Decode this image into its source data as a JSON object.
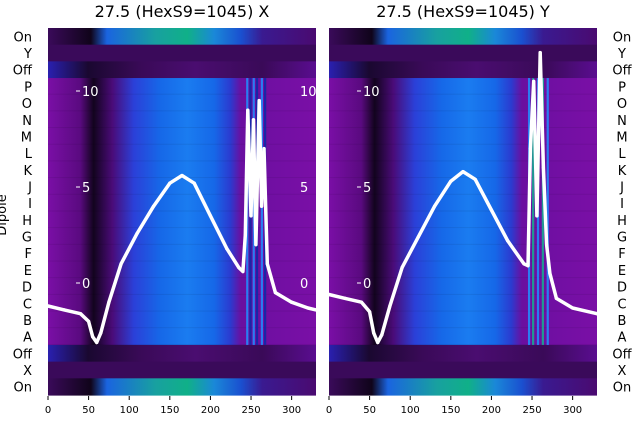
{
  "chart_data": [
    {
      "type": "heatmap",
      "title": "27.5 (HexS9=1045) X",
      "ylabel": "Dipole",
      "xlim": [
        0,
        330
      ],
      "x_ticks": [
        "0",
        "50",
        "100",
        "150",
        "200",
        "250",
        "300"
      ],
      "line_ticks": [
        "0",
        "5",
        "10",
        "15",
        "20",
        "25"
      ],
      "rows": [
        "On",
        "Y",
        "Off",
        "P",
        "O",
        "N",
        "M",
        "L",
        "K",
        "J",
        "I",
        "H",
        "G",
        "F",
        "E",
        "D",
        "C",
        "B",
        "A",
        "Off",
        "X",
        "On"
      ],
      "trace": {
        "x": [
          0,
          20,
          40,
          50,
          55,
          60,
          65,
          75,
          90,
          110,
          130,
          150,
          165,
          180,
          200,
          220,
          235,
          240,
          243,
          246,
          250,
          253,
          256,
          260,
          263,
          266,
          270,
          280,
          300,
          320,
          330
        ],
        "y": [
          -1.2,
          -1.4,
          -1.6,
          -2.0,
          -2.8,
          -3.1,
          -2.6,
          -1.0,
          1.0,
          2.6,
          4.0,
          5.2,
          5.6,
          5.2,
          3.5,
          1.8,
          0.8,
          0.6,
          2.5,
          9.0,
          3.5,
          8.5,
          2.0,
          9.5,
          4.0,
          7.0,
          1.0,
          -0.5,
          -1.0,
          -1.3,
          -1.4
        ]
      }
    },
    {
      "type": "heatmap",
      "title": "27.5 (HexS9=1045) Y",
      "xlim": [
        0,
        330
      ],
      "x_ticks": [
        "0",
        "50",
        "100",
        "150",
        "200",
        "250",
        "300"
      ],
      "line_ticks": [
        "0",
        "5",
        "10",
        "15",
        "20",
        "25"
      ],
      "rows": [
        "On",
        "Y",
        "Off",
        "P",
        "O",
        "N",
        "M",
        "L",
        "K",
        "J",
        "I",
        "H",
        "G",
        "F",
        "E",
        "D",
        "C",
        "B",
        "A",
        "Off",
        "X",
        "On"
      ],
      "trace": {
        "x": [
          0,
          20,
          40,
          50,
          55,
          60,
          65,
          75,
          90,
          110,
          130,
          150,
          165,
          180,
          200,
          220,
          240,
          245,
          248,
          252,
          256,
          260,
          264,
          268,
          272,
          280,
          300,
          320,
          330
        ],
        "y": [
          -0.6,
          -0.8,
          -1.0,
          -1.5,
          -2.6,
          -3.1,
          -2.7,
          -1.2,
          0.8,
          2.4,
          4.0,
          5.3,
          5.8,
          5.4,
          3.8,
          2.2,
          1.0,
          0.9,
          7.0,
          10.5,
          3.5,
          12.0,
          6.0,
          2.0,
          0.5,
          -0.8,
          -1.3,
          -1.5,
          -1.6
        ]
      }
    }
  ],
  "colors": {
    "purple": "#7a0fa6",
    "dark": "#1a0628",
    "blue": "#1565e8",
    "teal": "#12a890",
    "trace": "#ffffff"
  }
}
